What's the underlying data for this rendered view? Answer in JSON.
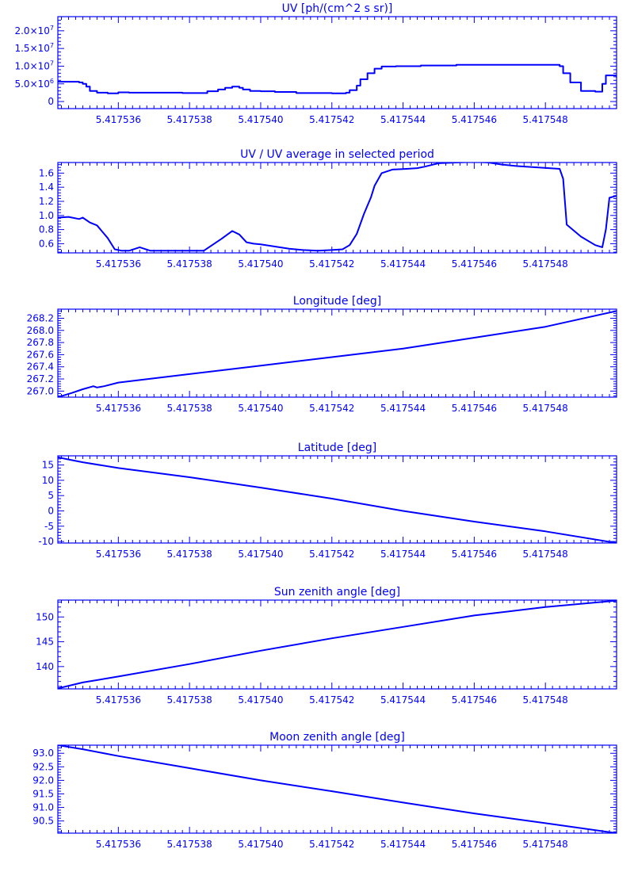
{
  "chart_data": [
    {
      "type": "line",
      "title": "UV [ph/(cm^2 s sr)]",
      "xlabel": "",
      "ylabel": "",
      "xlim": [
        5.4175343,
        5.41755
      ],
      "ylim": [
        -2000000,
        24000000
      ],
      "x_ticks": [
        "5.417536",
        "5.417538",
        "5.417540",
        "5.417542",
        "5.417544",
        "5.417546",
        "5.417548"
      ],
      "y_ticks": [
        {
          "value": 0,
          "label": "0"
        },
        {
          "value": 5000000,
          "label": "5.0x10^6"
        },
        {
          "value": 10000000,
          "label": "1.0x10^7"
        },
        {
          "value": 15000000,
          "label": "1.5x10^7"
        },
        {
          "value": 20000000,
          "label": "2.0x10^7"
        }
      ],
      "step": true,
      "series": [
        {
          "x": [
            5.4175343,
            5.4175349,
            5.417535,
            5.4175351,
            5.4175352,
            5.4175354,
            5.4175357,
            5.417536,
            5.4175363,
            5.4175378,
            5.4175385,
            5.4175388,
            5.417539,
            5.4175392,
            5.4175394,
            5.4175395,
            5.4175397,
            5.41754,
            5.4175404,
            5.417541,
            5.417542,
            5.4175424,
            5.4175425,
            5.4175427,
            5.4175428,
            5.417543,
            5.4175432,
            5.4175434,
            5.4175438,
            5.4175445,
            5.4175455,
            5.4175466,
            5.4175484,
            5.4175485,
            5.4175487,
            5.417549,
            5.4175494,
            5.4175496,
            5.4175497,
            5.41755
          ],
          "y": [
            5600000,
            5400000,
            5000000,
            4200000,
            3000000,
            2500000,
            2300000,
            2600000,
            2500000,
            2400000,
            2900000,
            3400000,
            3900000,
            4200000,
            3900000,
            3400000,
            3000000,
            2900000,
            2700000,
            2400000,
            2300000,
            2500000,
            3200000,
            4500000,
            6300000,
            8000000,
            9300000,
            9900000,
            10000000,
            10200000,
            10400000,
            10400000,
            10000000,
            8000000,
            5400000,
            3000000,
            2800000,
            5000000,
            7400000,
            6800000
          ]
        }
      ]
    },
    {
      "type": "line",
      "title": "UV / UV average in selected period",
      "xlabel": "",
      "ylabel": "",
      "xlim": [
        5.4175343,
        5.41755
      ],
      "ylim": [
        0.47,
        1.75
      ],
      "x_ticks": [
        "5.417536",
        "5.417538",
        "5.417540",
        "5.417542",
        "5.417544",
        "5.417546",
        "5.417548"
      ],
      "y_ticks": [
        {
          "value": 0.6,
          "label": "0.6"
        },
        {
          "value": 0.8,
          "label": "0.8"
        },
        {
          "value": 1.0,
          "label": "1.0"
        },
        {
          "value": 1.2,
          "label": "1.2"
        },
        {
          "value": 1.4,
          "label": "1.4"
        },
        {
          "value": 1.6,
          "label": "1.6"
        }
      ],
      "step": false,
      "series": [
        {
          "x": [
            5.4175343,
            5.4175346,
            5.4175349,
            5.417535,
            5.4175352,
            5.4175354,
            5.4175357,
            5.4175359,
            5.4175361,
            5.4175363,
            5.4175366,
            5.4175369,
            5.4175379,
            5.4175384,
            5.4175389,
            5.4175392,
            5.4175394,
            5.4175396,
            5.4175398,
            5.41754,
            5.4175404,
            5.4175408,
            5.4175412,
            5.4175416,
            5.417542,
            5.4175423,
            5.4175425,
            5.4175427,
            5.4175429,
            5.4175431,
            5.4175432,
            5.4175434,
            5.4175437,
            5.4175441,
            5.4175444,
            5.4175446,
            5.417545,
            5.417546,
            5.4175464,
            5.4175468,
            5.4175472,
            5.4175478,
            5.4175484,
            5.4175485,
            5.4175486,
            5.417549,
            5.4175494,
            5.4175496,
            5.4175497,
            5.4175498,
            5.41755
          ],
          "y": [
            0.97,
            0.98,
            0.95,
            0.97,
            0.9,
            0.86,
            0.68,
            0.52,
            0.5,
            0.5,
            0.55,
            0.5,
            0.5,
            0.5,
            0.67,
            0.78,
            0.73,
            0.62,
            0.6,
            0.59,
            0.56,
            0.53,
            0.51,
            0.5,
            0.51,
            0.52,
            0.58,
            0.74,
            1.02,
            1.26,
            1.42,
            1.6,
            1.65,
            1.66,
            1.67,
            1.69,
            1.74,
            1.76,
            1.75,
            1.72,
            1.7,
            1.68,
            1.66,
            1.52,
            0.87,
            0.7,
            0.58,
            0.55,
            0.8,
            1.25,
            1.28
          ]
        }
      ]
    },
    {
      "type": "line",
      "title": "Longitude [deg]",
      "xlabel": "",
      "ylabel": "",
      "xlim": [
        5.4175343,
        5.41755
      ],
      "ylim": [
        266.9,
        268.35
      ],
      "x_ticks": [
        "5.417536",
        "5.417538",
        "5.417540",
        "5.417542",
        "5.417544",
        "5.417546",
        "5.417548"
      ],
      "y_ticks": [
        {
          "value": 267.0,
          "label": "267.0"
        },
        {
          "value": 267.2,
          "label": "267.2"
        },
        {
          "value": 267.4,
          "label": "267.4"
        },
        {
          "value": 267.6,
          "label": "267.6"
        },
        {
          "value": 267.8,
          "label": "267.8"
        },
        {
          "value": 268.0,
          "label": "268.0"
        },
        {
          "value": 268.2,
          "label": "268.2"
        }
      ],
      "step": false,
      "series": [
        {
          "x": [
            5.4175343,
            5.4175347,
            5.417535,
            5.4175353,
            5.4175354,
            5.4175356,
            5.417536,
            5.417538,
            5.41754,
            5.417542,
            5.417544,
            5.417546,
            5.417548,
            5.41755
          ],
          "y": [
            266.9,
            266.97,
            267.03,
            267.08,
            267.06,
            267.08,
            267.14,
            267.28,
            267.42,
            267.56,
            267.7,
            267.88,
            268.06,
            268.32
          ]
        }
      ]
    },
    {
      "type": "line",
      "title": "Latitude [deg]",
      "xlabel": "",
      "ylabel": "",
      "xlim": [
        5.4175343,
        5.41755
      ],
      "ylim": [
        -10.5,
        18
      ],
      "x_ticks": [
        "5.417536",
        "5.417538",
        "5.417540",
        "5.417542",
        "5.417544",
        "5.417546",
        "5.417548"
      ],
      "y_ticks": [
        {
          "value": -10,
          "label": "-10"
        },
        {
          "value": -5,
          "label": "-5"
        },
        {
          "value": 0,
          "label": "0"
        },
        {
          "value": 5,
          "label": "5"
        },
        {
          "value": 10,
          "label": "10"
        },
        {
          "value": 15,
          "label": "15"
        }
      ],
      "step": false,
      "series": [
        {
          "x": [
            5.4175343,
            5.4175346,
            5.417535,
            5.417536,
            5.417538,
            5.41754,
            5.417542,
            5.417544,
            5.417546,
            5.417548,
            5.41755
          ],
          "y": [
            17.5,
            16.8,
            15.9,
            14.0,
            11.0,
            7.6,
            4.0,
            0.0,
            -3.5,
            -6.7,
            -10.5
          ]
        }
      ]
    },
    {
      "type": "line",
      "title": "Sun zenith angle [deg]",
      "xlabel": "",
      "ylabel": "",
      "xlim": [
        5.4175343,
        5.41755
      ],
      "ylim": [
        135.5,
        153.4
      ],
      "x_ticks": [
        "5.417536",
        "5.417538",
        "5.417540",
        "5.417542",
        "5.417544",
        "5.417546",
        "5.417548"
      ],
      "y_ticks": [
        {
          "value": 140,
          "label": "140"
        },
        {
          "value": 145,
          "label": "145"
        },
        {
          "value": 150,
          "label": "150"
        }
      ],
      "step": false,
      "series": [
        {
          "x": [
            5.4175343,
            5.417535,
            5.417536,
            5.417538,
            5.41754,
            5.417542,
            5.417544,
            5.417546,
            5.417548,
            5.41755
          ],
          "y": [
            135.6,
            136.8,
            138.0,
            140.5,
            143.2,
            145.7,
            148.0,
            150.3,
            152.0,
            153.3
          ]
        }
      ]
    },
    {
      "type": "line",
      "title": "Moon zenith angle [deg]",
      "xlabel": "",
      "ylabel": "",
      "xlim": [
        5.4175343,
        5.41755
      ],
      "ylim": [
        90.05,
        93.3
      ],
      "x_ticks": [
        "5.417536",
        "5.417538",
        "5.417540",
        "5.417542",
        "5.417544",
        "5.417546",
        "5.417548"
      ],
      "y_ticks": [
        {
          "value": 90.5,
          "label": "90.5"
        },
        {
          "value": 91.0,
          "label": "91.0"
        },
        {
          "value": 91.5,
          "label": "91.5"
        },
        {
          "value": 92.0,
          "label": "92.0"
        },
        {
          "value": 92.5,
          "label": "92.5"
        },
        {
          "value": 93.0,
          "label": "93.0"
        }
      ],
      "step": false,
      "series": [
        {
          "x": [
            5.4175343,
            5.417535,
            5.417536,
            5.417538,
            5.41754,
            5.417542,
            5.417544,
            5.417546,
            5.417548,
            5.41755
          ],
          "y": [
            93.3,
            93.15,
            92.9,
            92.45,
            92.0,
            91.6,
            91.18,
            90.78,
            90.42,
            90.05
          ]
        }
      ]
    }
  ]
}
